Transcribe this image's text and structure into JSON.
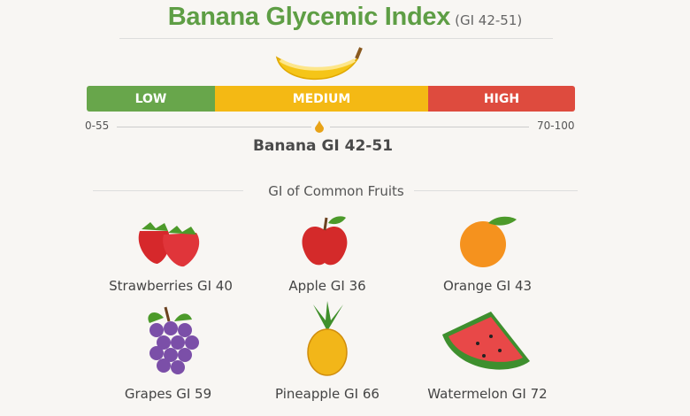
{
  "title": {
    "main": "Banana Glycemic Index",
    "sub": "(GI 42-51)"
  },
  "scale": {
    "segments": [
      {
        "label": "LOW",
        "color": "#68a64b"
      },
      {
        "label": "MEDIUM",
        "color": "#f4b914"
      },
      {
        "label": "HIGH",
        "color": "#de4b3e"
      }
    ],
    "left_label": "0-55",
    "right_label": "70-100",
    "marker_label": "Banana GI 42-51"
  },
  "section_title": "GI of Common Fruits",
  "fruits": [
    {
      "label": "Strawberries GI 40",
      "icon": "strawberry-icon"
    },
    {
      "label": "Apple GI 36",
      "icon": "apple-icon"
    },
    {
      "label": "Orange GI 43",
      "icon": "orange-icon"
    },
    {
      "label": "Grapes GI 59",
      "icon": "grapes-icon"
    },
    {
      "label": "Pineapple GI 66",
      "icon": "pineapple-icon"
    },
    {
      "label": "Watermelon GI 72",
      "icon": "watermelon-icon"
    }
  ]
}
